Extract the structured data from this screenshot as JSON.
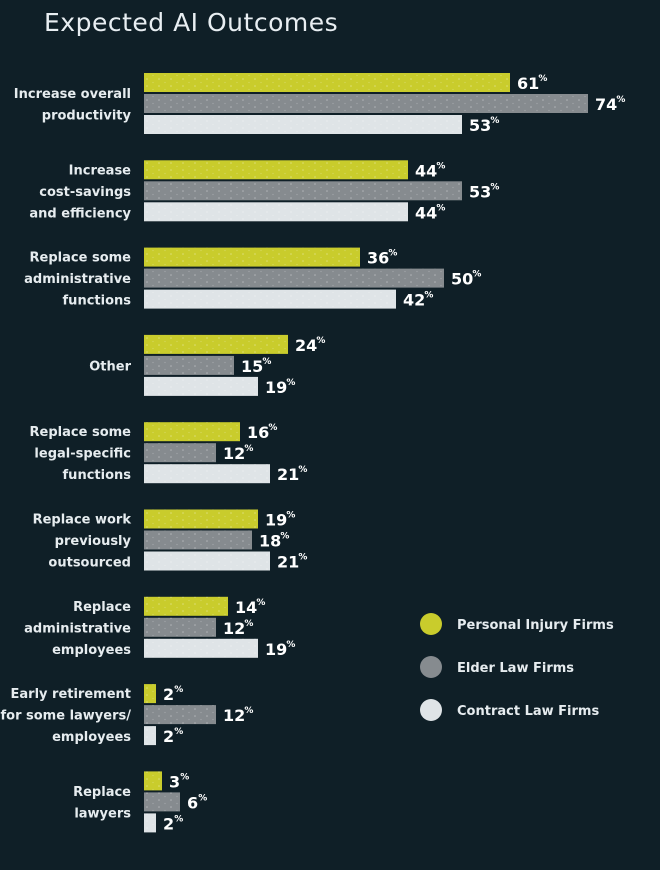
{
  "chart_data": {
    "type": "bar",
    "orientation": "horizontal",
    "title": "Expected AI Outcomes",
    "value_suffix": "%",
    "xlim": [
      0,
      74
    ],
    "grid": false,
    "legend_position": "right",
    "categories": [
      [
        "Increase overall",
        "productivity"
      ],
      [
        "Increase",
        "cost-savings",
        "and efficiency"
      ],
      [
        "Replace some",
        "administrative",
        "functions"
      ],
      [
        "Other"
      ],
      [
        "Replace some",
        "legal-specific",
        "functions"
      ],
      [
        "Replace work",
        "previously",
        "outsourced"
      ],
      [
        "Replace",
        "administrative",
        "employees"
      ],
      [
        "Early retirement",
        "for some lawyers/",
        "employees"
      ],
      [
        "Replace",
        "lawyers"
      ]
    ],
    "series": [
      {
        "name": "Personal Injury Firms",
        "color": "#c9cc2c",
        "values": [
          61,
          44,
          36,
          24,
          16,
          19,
          14,
          2,
          3
        ]
      },
      {
        "name": "Elder Law Firms",
        "color": "#868b8f",
        "values": [
          74,
          53,
          50,
          15,
          12,
          18,
          12,
          12,
          6
        ]
      },
      {
        "name": "Contract Law Firms",
        "color": "#dfe4e7",
        "values": [
          53,
          44,
          42,
          19,
          21,
          21,
          19,
          2,
          2
        ]
      }
    ]
  }
}
